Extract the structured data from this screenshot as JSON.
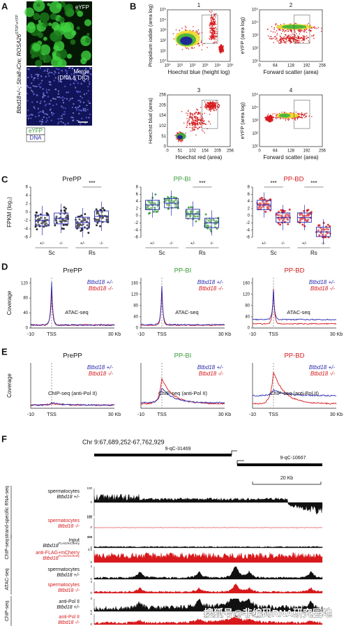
{
  "panel_a": {
    "letter": "A",
    "label_top": "eYFP",
    "label_bottom": [
      "Merge",
      "(DNA & DIC)"
    ],
    "genotype": "Btbd18+/−; Stra8-iCre; ROSA26",
    "genotype_sup": "STOP-eYFP",
    "legend": [
      "eYFP",
      "DNA"
    ]
  },
  "panel_b": {
    "letter": "B",
    "plots": [
      {
        "number": "1",
        "xlabel": "Hoechst blue (height log)",
        "ylabel": "Propidium iodide (area log)",
        "xticks": [
          "10⁰",
          "10¹",
          "10²",
          "10³",
          "10⁴",
          "10⁵"
        ],
        "yticks": [
          "10⁵",
          "10⁴",
          "10³",
          "10²",
          "10¹",
          "10⁰"
        ]
      },
      {
        "number": "2",
        "xlabel": "Forward scatter (area)",
        "ylabel": "eYFP (area log)",
        "xticks": [
          "0",
          "64",
          "128",
          "192",
          "256"
        ],
        "yticks": [
          "10⁵",
          "10⁴",
          "10³",
          "10²",
          "10¹"
        ]
      },
      {
        "number": "3",
        "xlabel": "Hoechst red (area)",
        "ylabel": "Hoechst blud (area)",
        "xticks": [
          "0",
          "51",
          "102",
          "154",
          "205",
          "256"
        ],
        "yticks": [
          "256",
          "205",
          "154",
          "102",
          "51",
          "0"
        ]
      },
      {
        "number": "4",
        "xlabel": "Forward scatter (area)",
        "ylabel": "eYFP (area log)",
        "xticks": [
          "0",
          "64",
          "128",
          "192",
          "256"
        ],
        "yticks": [
          "10⁵",
          "10⁴",
          "10³",
          "10²",
          "10¹"
        ]
      }
    ]
  },
  "panel_c": {
    "letter": "C",
    "ylabel": "FPKM (log₂)",
    "groups": [
      "+/-",
      "-/-",
      "+/-",
      "-/-"
    ],
    "cell_types": [
      "Sc",
      "Rs"
    ],
    "plots": [
      {
        "title": "PrePP",
        "title_color": "#111111",
        "dot_color": "#111111",
        "yticks": [
          "6",
          "4",
          "2",
          "0",
          "-2",
          "-4",
          "-6"
        ],
        "medians": [
          -2,
          -1.5,
          -2.5,
          -1
        ],
        "significance": [
          "***"
        ]
      },
      {
        "title": "PP-BI",
        "title_color": "#3a9a3a",
        "dot_color": "#3a9a3a",
        "yticks": [
          "8",
          "6",
          "4",
          "2",
          "0",
          "-2",
          "-4",
          "-6"
        ],
        "medians": [
          3,
          3.5,
          0.5,
          -2
        ],
        "significance": [
          "***"
        ]
      },
      {
        "title": "PP-BD",
        "title_color": "#d7191c",
        "dot_color": "#d7191c",
        "yticks": [
          "8",
          "6",
          "4",
          "2",
          "0",
          "-2",
          "-4",
          "-6"
        ],
        "medians": [
          3,
          -0.5,
          -0.5,
          -4.5
        ],
        "significance": [
          "***",
          "***"
        ]
      }
    ]
  },
  "panel_d": {
    "letter": "D",
    "ylabel": "Coverage",
    "assay": "ATAC-seq",
    "xticks": [
      "-10",
      "TSS",
      "30 Kb"
    ],
    "legend": [
      {
        "name": "Btbd18 +/-",
        "color": "#2b2bb0"
      },
      {
        "name": "Btbd18 -/-",
        "color": "#d7191c"
      }
    ],
    "plots": [
      {
        "title": "PrePP",
        "title_color": "#111111",
        "yticks": [
          "0",
          "40",
          "80",
          "120"
        ],
        "series": [
          {
            "peak": 125,
            "baseline": 8
          },
          {
            "peak": 105,
            "baseline": 8
          }
        ]
      },
      {
        "title": "PP-BI",
        "title_color": "#3a9a3a",
        "yticks": [
          "0",
          "40",
          "80",
          "120",
          "160"
        ],
        "series": [
          {
            "peak": 150,
            "baseline": 12
          },
          {
            "peak": 140,
            "baseline": 10
          }
        ]
      },
      {
        "title": "PP-BD",
        "title_color": "#d7191c",
        "yticks": [
          "0",
          "40",
          "80",
          "120",
          "160"
        ],
        "series": [
          {
            "peak": 135,
            "baseline": 30
          },
          {
            "peak": 140,
            "baseline": 15
          }
        ]
      }
    ]
  },
  "panel_e": {
    "letter": "E",
    "ylabel": "Coverage",
    "assay": "ChIP-seq (anti-Pol II)",
    "xticks": [
      "-10",
      "TSS",
      "30 Kb"
    ],
    "plots": [
      {
        "title": "PrePP",
        "title_color": "#111111"
      },
      {
        "title": "PP-BI",
        "title_color": "#3a9a3a"
      },
      {
        "title": "PP-BD",
        "title_color": "#d7191c"
      }
    ]
  },
  "panel_f": {
    "letter": "F",
    "coordinates": "Chr 9:67,689,252-67,762,929",
    "genes": [
      "9-qC-31469",
      "9-qC-10667"
    ],
    "scale": "20 Kb",
    "groups": [
      "strand-specific RNA-seq",
      "ChIP-seq",
      "ATAC-seq",
      "ChIP-seq"
    ],
    "tracks": [
      {
        "lines": [
          "spermatocytes",
          "Btbd18 +/-"
        ],
        "color": "#111111",
        "ticks": [
          "100",
          "0",
          "100"
        ]
      },
      {
        "lines": [
          "spermatocytes",
          "Btbd18 -/-"
        ],
        "color": "#d7191c",
        "ticks": [
          "100",
          "0",
          "100"
        ]
      },
      {
        "lines": [
          "Input",
          "Btbd18"
        ],
        "sup": "FLAG/mCherry",
        "color": "#111111",
        "ticks": [
          "3.5",
          "0"
        ]
      },
      {
        "lines": [
          "anti-FLAG+mCherry",
          "Btbd18"
        ],
        "sup": "FLAG/mCherry",
        "color": "#d7191c",
        "ticks": [
          "3.5",
          "0"
        ]
      },
      {
        "lines": [
          "spermatocytes",
          "Btbd18 +/-"
        ],
        "color": "#111111",
        "ticks": [
          "4",
          "0"
        ]
      },
      {
        "lines": [
          "spermatocytes",
          "Btbd18 -/-"
        ],
        "color": "#d7191c",
        "ticks": [
          "4",
          "0"
        ]
      },
      {
        "lines": [
          "anti-Pol II",
          "Btbd18 +/-"
        ],
        "color": "#111111",
        "ticks": [
          "2",
          "0"
        ]
      },
      {
        "lines": [
          "anti-Pol II",
          "Btbd18 -/-"
        ],
        "color": "#d7191c",
        "ticks": [
          "2",
          "0"
        ]
      }
    ],
    "watermark": "搜狐号@非编码RNA研究园地"
  }
}
